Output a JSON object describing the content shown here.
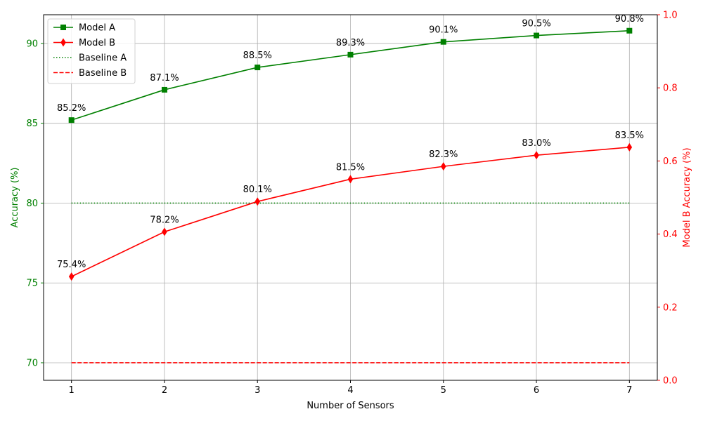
{
  "chart_data": {
    "type": "line",
    "x": [
      1,
      2,
      3,
      4,
      5,
      6,
      7
    ],
    "xlabel": "Number of Sensors",
    "ylabel": "Accuracy (%)",
    "ylabel_right": "Model B Accuracy (%)",
    "ylim": [
      68.9,
      91.8
    ],
    "ylim_right": [
      0,
      1
    ],
    "xlim": [
      0.7,
      7.3
    ],
    "yticks": [
      70,
      75,
      80,
      85,
      90
    ],
    "yticks_right": [
      "0.0",
      "0.2",
      "0.4",
      "0.6",
      "0.8",
      "1.0"
    ],
    "grid": true,
    "legend_position": "top-left",
    "series": [
      {
        "name": "Model A",
        "values": [
          85.2,
          87.1,
          88.5,
          89.3,
          90.1,
          90.5,
          90.8
        ],
        "labels": [
          "85.2%",
          "87.1%",
          "88.5%",
          "89.3%",
          "90.1%",
          "90.5%",
          "90.8%"
        ],
        "color": "#008000",
        "marker": "square",
        "style": "solid"
      },
      {
        "name": "Model B",
        "values": [
          75.4,
          78.2,
          80.1,
          81.5,
          82.3,
          83.0,
          83.5
        ],
        "labels": [
          "75.4%",
          "78.2%",
          "80.1%",
          "81.5%",
          "82.3%",
          "83.0%",
          "83.5%"
        ],
        "color": "#ff0000",
        "marker": "diamond",
        "style": "solid"
      },
      {
        "name": "Baseline A",
        "values": [
          80,
          80,
          80,
          80,
          80,
          80,
          80
        ],
        "color": "#008000",
        "marker": "none",
        "style": "dotted"
      },
      {
        "name": "Baseline B",
        "values": [
          70,
          70,
          70,
          70,
          70,
          70,
          70
        ],
        "color": "#ff0000",
        "marker": "none",
        "style": "dashed"
      }
    ],
    "colors": {
      "left_axis": "#008000",
      "right_axis": "#ff0000",
      "grid": "#b0b0b0"
    }
  }
}
